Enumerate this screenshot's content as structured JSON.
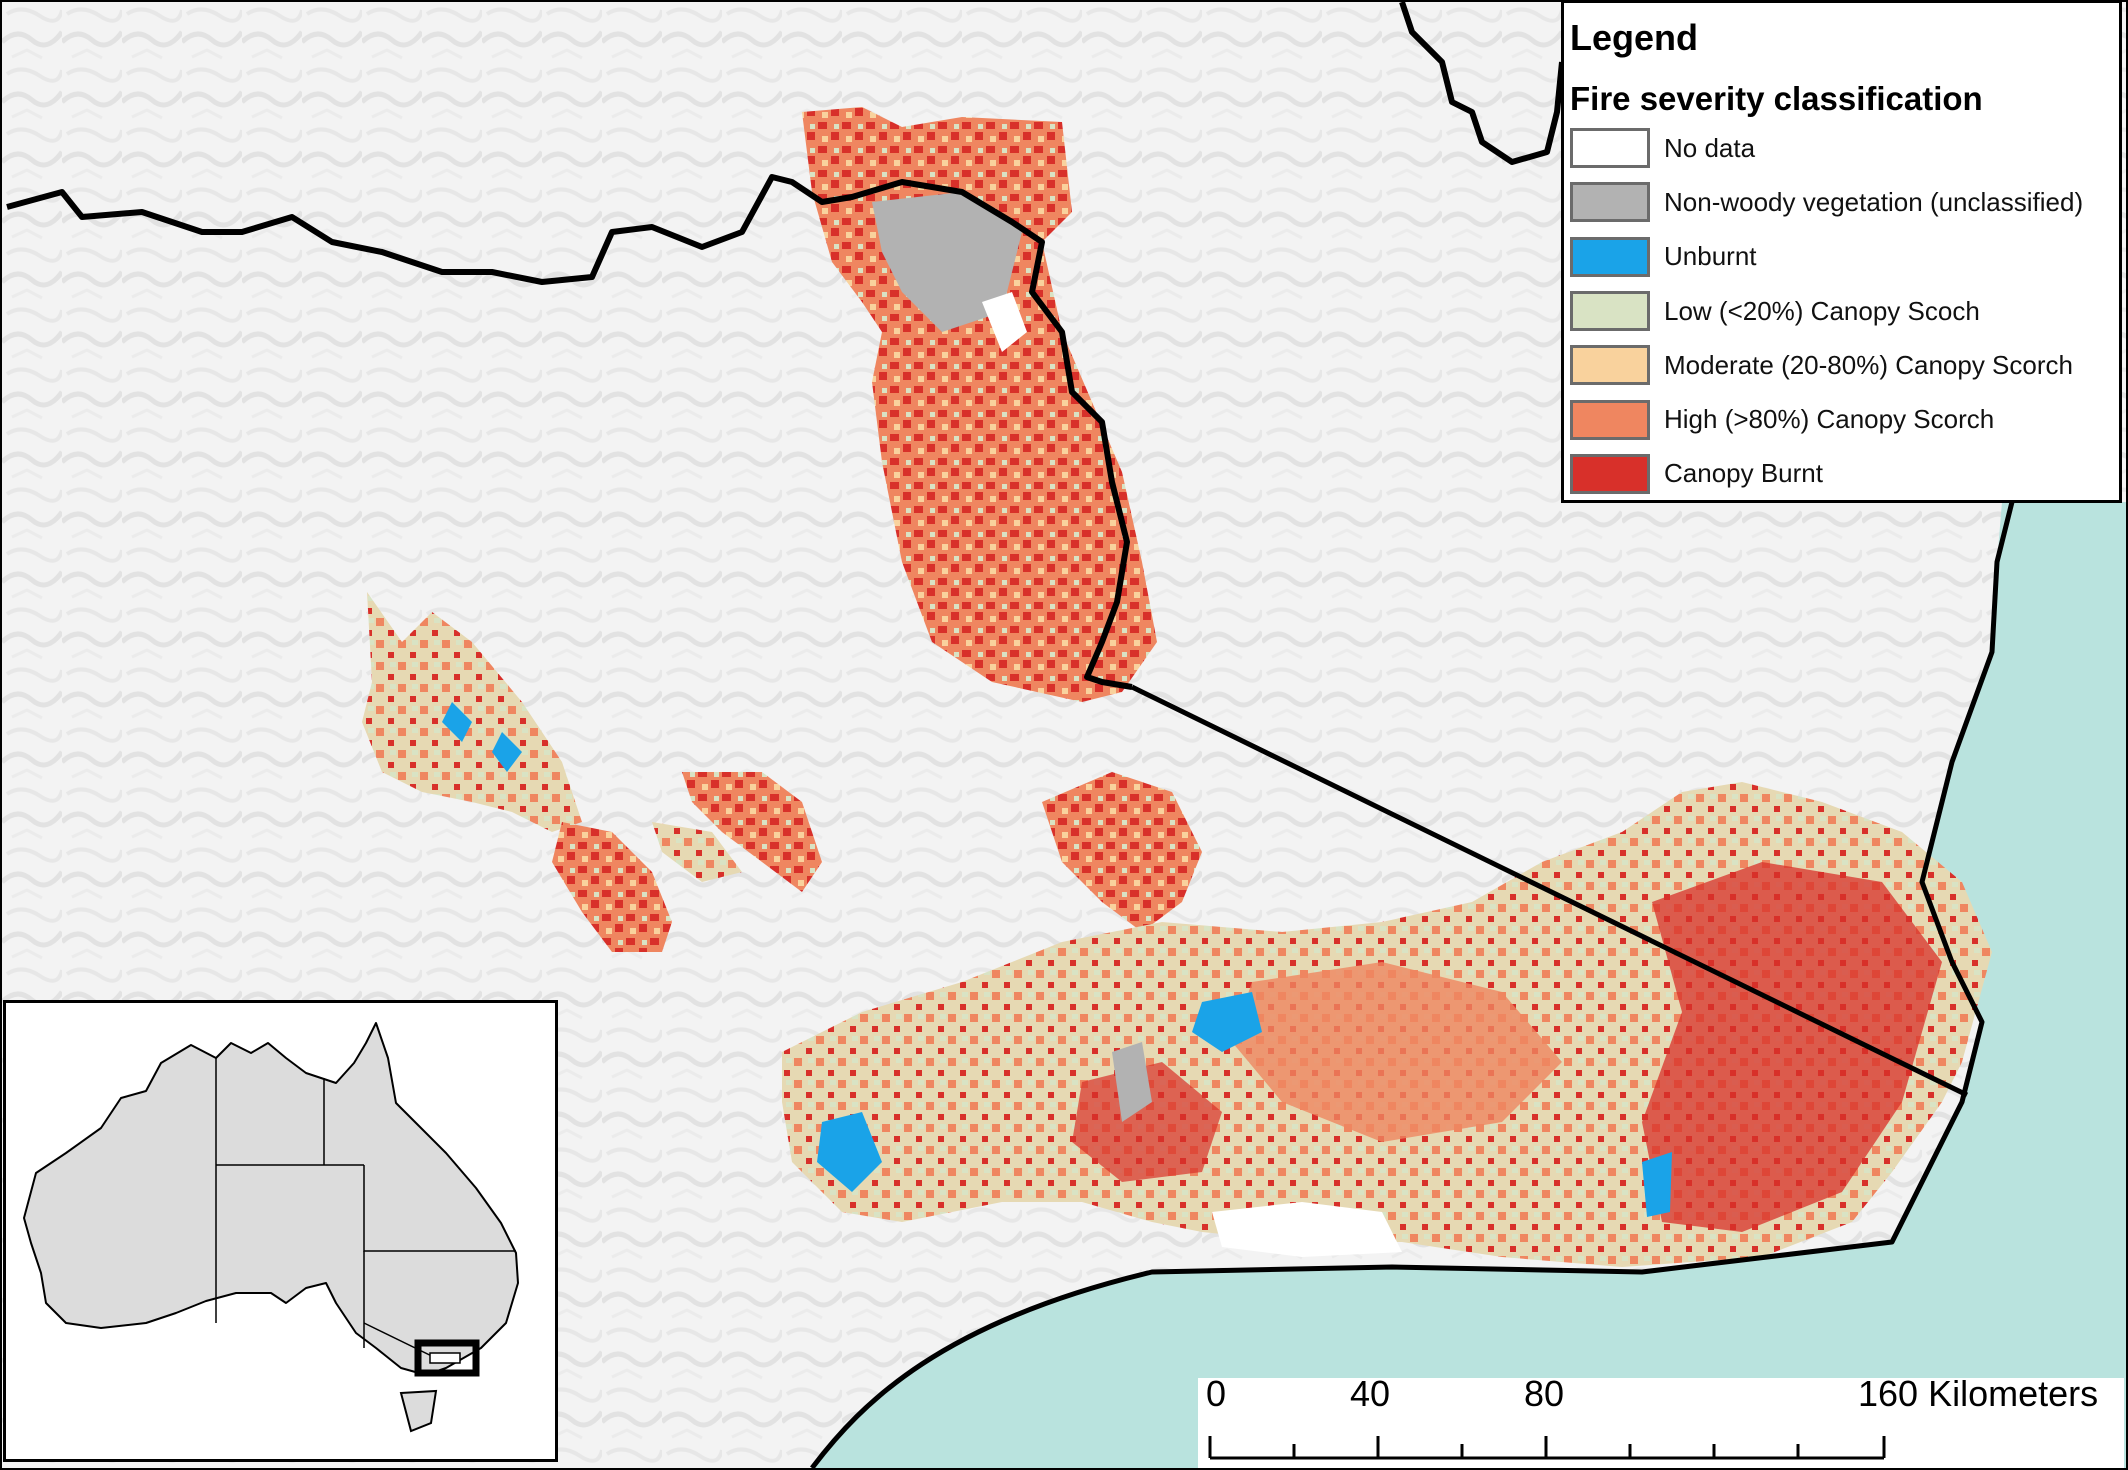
{
  "legend": {
    "title": "Legend",
    "subtitle": "Fire severity classification",
    "items": [
      {
        "label": "No data",
        "color": "#ffffff"
      },
      {
        "label": "Non-woody vegetation (unclassified)",
        "color": "#b2b2b2"
      },
      {
        "label": "Unburnt",
        "color": "#1aa3e8"
      },
      {
        "label": "Low (<20%) Canopy Scoch",
        "color": "#d9e3c4"
      },
      {
        "label": "Moderate (20-80%) Canopy Scorch",
        "color": "#f9d29d"
      },
      {
        "label": "High (>80%) Canopy Scorch",
        "color": "#ef8660"
      },
      {
        "label": "Canopy Burnt",
        "color": "#d8302a"
      }
    ]
  },
  "scalebar": {
    "labels": [
      "0",
      "40",
      "80",
      "160 Kilometers"
    ]
  },
  "colors": {
    "ocean": "#b9e3de",
    "terrain": "#f2f2f2",
    "boundary": "#000000",
    "australia_land": "#dcdcdc"
  }
}
